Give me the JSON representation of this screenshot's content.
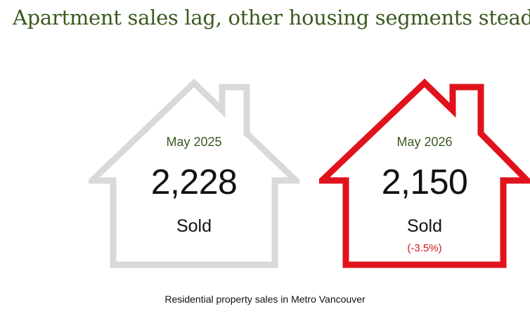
{
  "title": "Apartment sales lag, other housing segments steady",
  "houses": [
    {
      "period": "May 2025",
      "value": "2,228",
      "unit": "Sold",
      "change": "",
      "outline_color": "#d9d9d9"
    },
    {
      "period": "May 2026",
      "value": "2,150",
      "unit": "Sold",
      "change": "(-3.5%)",
      "outline_color": "#e0121b"
    }
  ],
  "caption": "Residential property sales in Metro Vancouver",
  "colors": {
    "title": "#3c5a1f",
    "period": "#3c5a1f",
    "change": "#d4141e"
  }
}
